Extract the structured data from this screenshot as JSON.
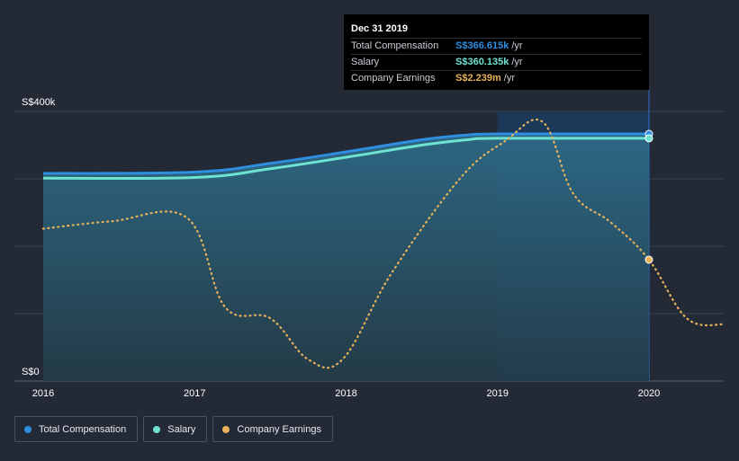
{
  "chart_data": {
    "type": "line",
    "x_ticks": [
      "2016",
      "2017",
      "2018",
      "2019",
      "2020"
    ],
    "y_ticks": [
      "S$0",
      "S$400k"
    ],
    "ylim": [
      0,
      400
    ],
    "xlim": [
      2016,
      2020.5
    ],
    "y_unit": "S$k",
    "highlight_start": 2019,
    "series": [
      {
        "name": "Total Compensation",
        "color": "#2e8ee0",
        "style": "solid-area",
        "points": [
          [
            2016,
            308
          ],
          [
            2017,
            310
          ],
          [
            2017.5,
            323
          ],
          [
            2018,
            340
          ],
          [
            2018.5,
            358
          ],
          [
            2018.8,
            365
          ],
          [
            2019,
            366.6
          ],
          [
            2020,
            366.6
          ]
        ]
      },
      {
        "name": "Salary",
        "color": "#6fe3d2",
        "style": "solid",
        "points": [
          [
            2016,
            301
          ],
          [
            2017,
            302
          ],
          [
            2017.5,
            315
          ],
          [
            2018,
            332
          ],
          [
            2018.5,
            350
          ],
          [
            2018.8,
            358
          ],
          [
            2019,
            360.1
          ],
          [
            2020,
            360.1
          ]
        ]
      },
      {
        "name": "Company Earnings",
        "color": "#e8b25a",
        "style": "dotted",
        "points": [
          [
            2016,
            226
          ],
          [
            2016.45,
            237
          ],
          [
            2016.95,
            242
          ],
          [
            2017.2,
            110
          ],
          [
            2017.5,
            93
          ],
          [
            2017.75,
            32
          ],
          [
            2017.98,
            33
          ],
          [
            2018.3,
            160
          ],
          [
            2018.75,
            300
          ],
          [
            2019.05,
            356
          ],
          [
            2019.3,
            384
          ],
          [
            2019.5,
            278
          ],
          [
            2019.75,
            235
          ],
          [
            2020,
            180
          ],
          [
            2020.25,
            93
          ],
          [
            2020.5,
            84
          ]
        ]
      }
    ],
    "markers": [
      {
        "series": "Total Compensation",
        "x": 2020,
        "y": 366.6
      },
      {
        "series": "Salary",
        "x": 2020,
        "y": 360.1
      },
      {
        "series": "Company Earnings",
        "x": 2020,
        "y": 180
      }
    ]
  },
  "tooltip": {
    "date": "Dec 31 2019",
    "rows": [
      {
        "label": "Total Compensation",
        "value": "S$366.615k",
        "unit": "/yr",
        "color": "#2e8ee0"
      },
      {
        "label": "Salary",
        "value": "S$360.135k",
        "unit": "/yr",
        "color": "#6fe3d2"
      },
      {
        "label": "Company Earnings",
        "value": "S$2.239m",
        "unit": "/yr",
        "color": "#e8b25a"
      }
    ]
  },
  "legend": [
    {
      "label": "Total Compensation",
      "color": "#2e8ee0"
    },
    {
      "label": "Salary",
      "color": "#6fe3d2"
    },
    {
      "label": "Company Earnings",
      "color": "#e8b25a"
    }
  ]
}
